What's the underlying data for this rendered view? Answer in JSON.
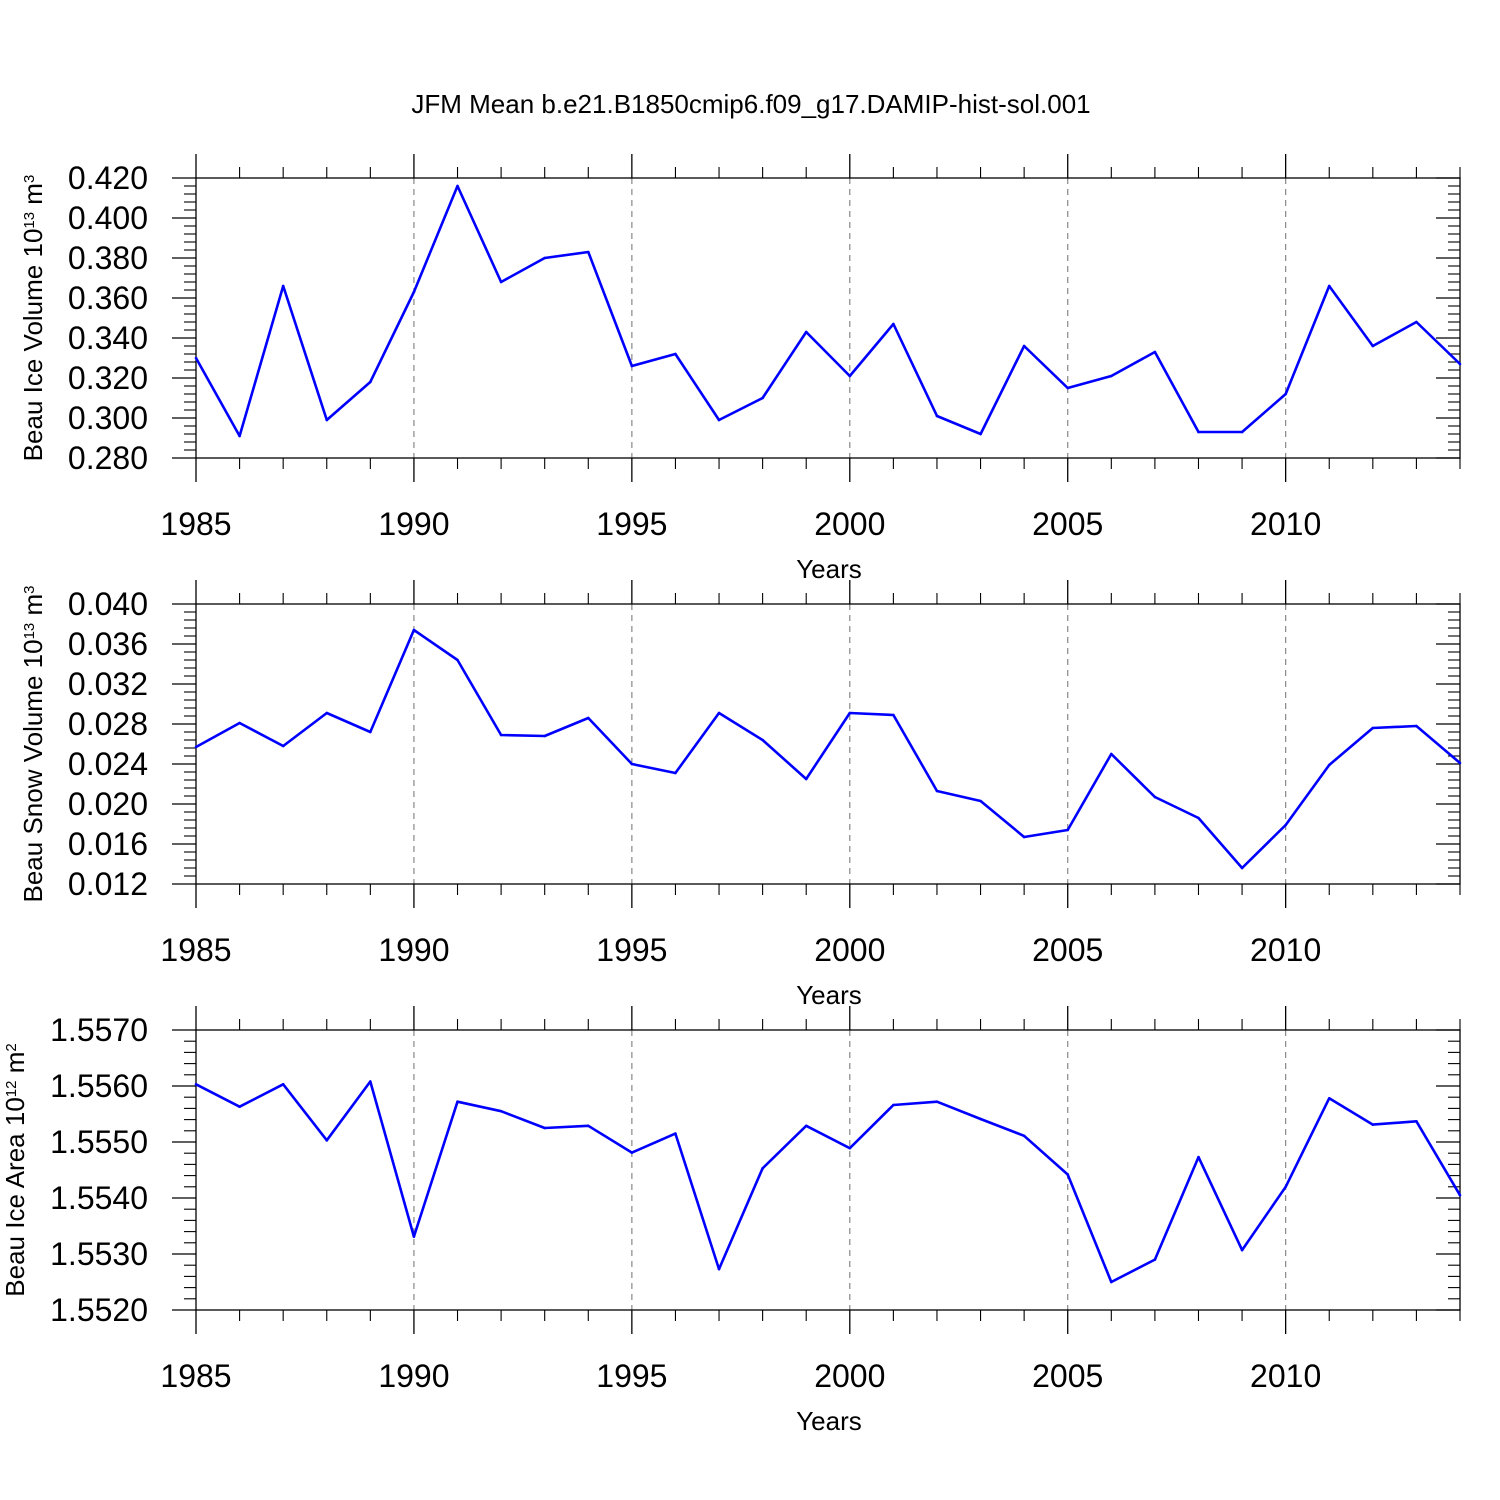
{
  "title": "JFM Mean b.e21.B1850cmip6.f09_g17.DAMIP-hist-sol.001",
  "colors": {
    "series": "#0000ff",
    "axis": "#000000",
    "grid": "#888888",
    "background": "#ffffff"
  },
  "chart_data": [
    {
      "type": "line",
      "ylabel": {
        "base": "Beau Ice Volume 10",
        "sup": "13",
        "mid": " m",
        "sup2": "3"
      },
      "xlabel": "Years",
      "xlim": [
        1985,
        2014
      ],
      "ylim": [
        0.28,
        0.42
      ],
      "yticks": [
        0.28,
        0.3,
        0.32,
        0.34,
        0.36,
        0.38,
        0.4,
        0.42
      ],
      "ytick_labels": [
        "0.280",
        "0.300",
        "0.320",
        "0.340",
        "0.360",
        "0.380",
        "0.400",
        "0.420"
      ],
      "xticks": [
        1985,
        1990,
        1995,
        2000,
        2005,
        2010
      ],
      "xtick_labels": [
        "1985",
        "1990",
        "1995",
        "2000",
        "2005",
        "2010"
      ],
      "grid": "vertical dashed at major x ticks",
      "x": [
        1985,
        1986,
        1987,
        1988,
        1989,
        1990,
        1991,
        1992,
        1993,
        1994,
        1995,
        1996,
        1997,
        1998,
        1999,
        2000,
        2001,
        2002,
        2003,
        2004,
        2005,
        2006,
        2007,
        2008,
        2009,
        2010,
        2011,
        2012,
        2013,
        2014
      ],
      "values": [
        0.33,
        0.291,
        0.366,
        0.299,
        0.318,
        0.363,
        0.416,
        0.368,
        0.38,
        0.383,
        0.326,
        0.332,
        0.299,
        0.31,
        0.343,
        0.321,
        0.347,
        0.301,
        0.292,
        0.336,
        0.315,
        0.321,
        0.333,
        0.293,
        0.293,
        0.312,
        0.366,
        0.336,
        0.348,
        0.327
      ]
    },
    {
      "type": "line",
      "ylabel": {
        "base": "Beau Snow Volume 10",
        "sup": "13",
        "mid": " m",
        "sup2": "3"
      },
      "xlabel": "Years",
      "xlim": [
        1985,
        2014
      ],
      "ylim": [
        0.012,
        0.04
      ],
      "yticks": [
        0.012,
        0.016,
        0.02,
        0.024,
        0.028,
        0.032,
        0.036,
        0.04
      ],
      "ytick_labels": [
        "0.012",
        "0.016",
        "0.020",
        "0.024",
        "0.028",
        "0.032",
        "0.036",
        "0.040"
      ],
      "xticks": [
        1985,
        1990,
        1995,
        2000,
        2005,
        2010
      ],
      "xtick_labels": [
        "1985",
        "1990",
        "1995",
        "2000",
        "2005",
        "2010"
      ],
      "grid": "vertical dashed at major x ticks",
      "x": [
        1985,
        1986,
        1987,
        1988,
        1989,
        1990,
        1991,
        1992,
        1993,
        1994,
        1995,
        1996,
        1997,
        1998,
        1999,
        2000,
        2001,
        2002,
        2003,
        2004,
        2005,
        2006,
        2007,
        2008,
        2009,
        2010,
        2011,
        2012,
        2013,
        2014
      ],
      "values": [
        0.0257,
        0.0281,
        0.0258,
        0.0291,
        0.0272,
        0.0374,
        0.0344,
        0.0269,
        0.0268,
        0.0286,
        0.024,
        0.0231,
        0.0291,
        0.0264,
        0.0225,
        0.0291,
        0.0289,
        0.0213,
        0.0203,
        0.0167,
        0.0174,
        0.025,
        0.0207,
        0.0186,
        0.0136,
        0.0179,
        0.0239,
        0.0276,
        0.0278,
        0.0241
      ]
    },
    {
      "type": "line",
      "ylabel": {
        "base": "Beau Ice Area 10",
        "sup": "12",
        "mid": " m",
        "sup2": "2"
      },
      "xlabel": "Years",
      "xlim": [
        1985,
        2014
      ],
      "ylim": [
        1.552,
        1.557
      ],
      "yticks": [
        1.552,
        1.553,
        1.554,
        1.555,
        1.556,
        1.557
      ],
      "ytick_labels": [
        "1.5520",
        "1.5530",
        "1.5540",
        "1.5550",
        "1.5560",
        "1.5570"
      ],
      "xticks": [
        1985,
        1990,
        1995,
        2000,
        2005,
        2010
      ],
      "xtick_labels": [
        "1985",
        "1990",
        "1995",
        "2000",
        "2005",
        "2010"
      ],
      "grid": "vertical dashed at major x ticks",
      "x": [
        1985,
        1986,
        1987,
        1988,
        1989,
        1990,
        1991,
        1992,
        1993,
        1994,
        1995,
        1996,
        1997,
        1998,
        1999,
        2000,
        2001,
        2002,
        2003,
        2004,
        2005,
        2006,
        2007,
        2008,
        2009,
        2010,
        2011,
        2012,
        2013,
        2014
      ],
      "values": [
        1.55603,
        1.55563,
        1.55603,
        1.55503,
        1.55608,
        1.55331,
        1.55572,
        1.55555,
        1.55525,
        1.55529,
        1.55481,
        1.55515,
        1.55273,
        1.55453,
        1.55529,
        1.55489,
        1.55566,
        1.55572,
        1.55541,
        1.55511,
        1.55442,
        1.5525,
        1.5529,
        1.55473,
        1.55307,
        1.5542,
        1.55578,
        1.55531,
        1.55537,
        1.55405
      ]
    }
  ]
}
